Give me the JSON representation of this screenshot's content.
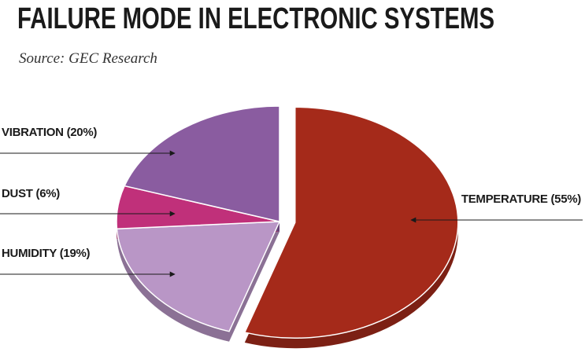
{
  "chart_data": {
    "type": "pie",
    "title": "FAILURE MODE IN ELECTRONIC SYSTEMS",
    "subtitle": "Source: GEC Research",
    "categories": [
      "TEMPERATURE",
      "HUMIDITY",
      "DUST",
      "VIBRATION"
    ],
    "values": [
      55,
      19,
      6,
      20
    ],
    "value_labels": [
      "(55%)",
      "(19%)",
      "(6%)",
      "(20%)"
    ],
    "colors": [
      "#a52a1a",
      "#b996c6",
      "#c0307a",
      "#8a5ca0"
    ]
  }
}
